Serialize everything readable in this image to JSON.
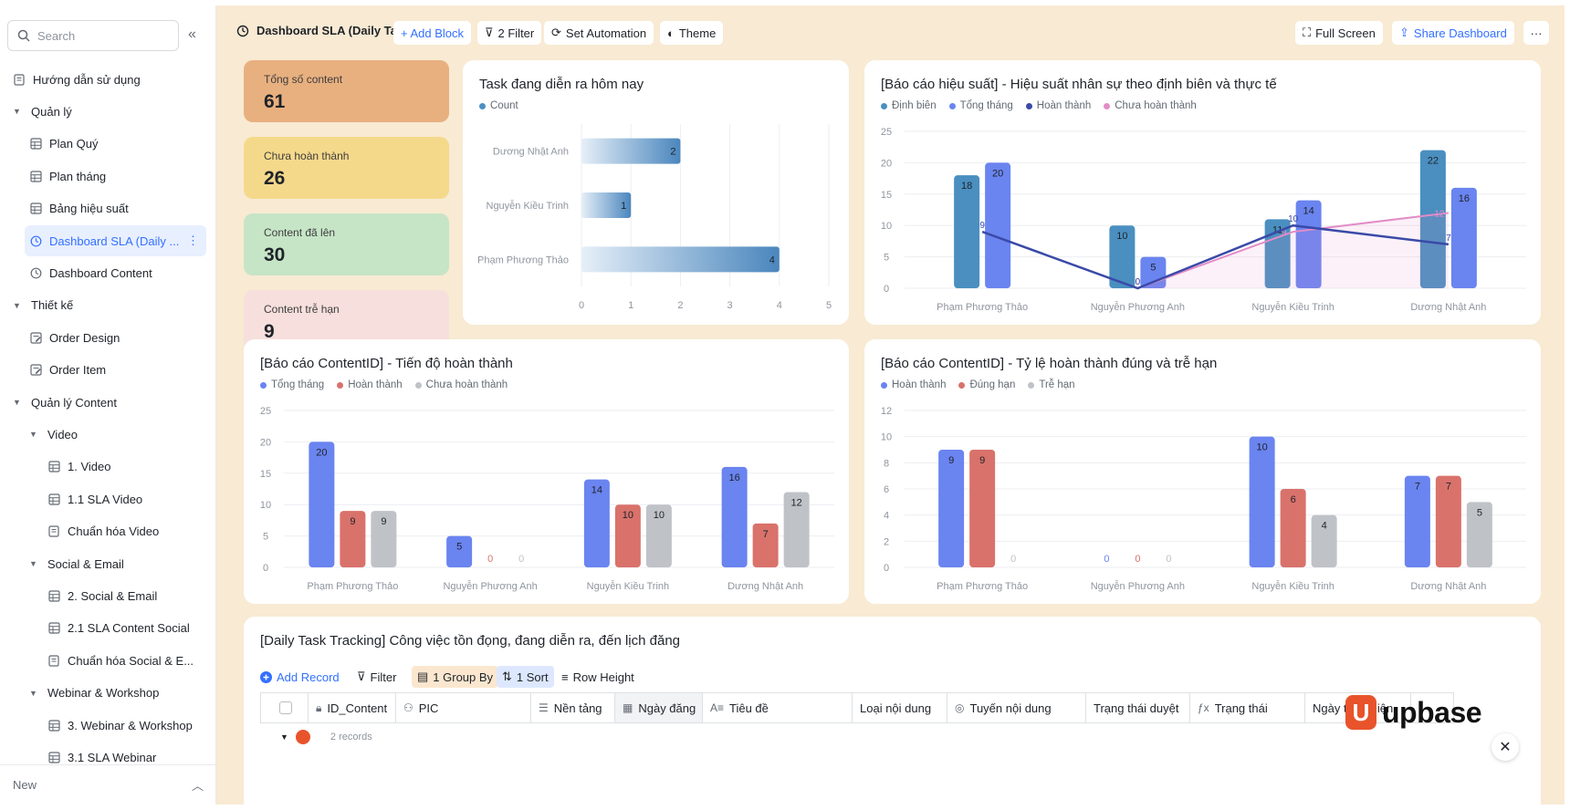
{
  "sidebar": {
    "search_placeholder": "Search",
    "footer_label": "New",
    "items": [
      {
        "label": "Hướng dẫn sử dụng",
        "level": 0,
        "icon": "doc-icon",
        "caret": false,
        "active": false
      },
      {
        "label": "Quản lý",
        "level": 0,
        "icon": "",
        "caret": true,
        "active": false
      },
      {
        "label": "Plan Quý",
        "level": 1,
        "icon": "table-icon",
        "caret": false,
        "active": false
      },
      {
        "label": "Plan tháng",
        "level": 1,
        "icon": "table-icon",
        "caret": false,
        "active": false
      },
      {
        "label": "Bảng hiệu suất",
        "level": 1,
        "icon": "table-icon",
        "caret": false,
        "active": false
      },
      {
        "label": "Dashboard SLA (Daily ...",
        "level": 1,
        "icon": "dashboard-icon",
        "caret": false,
        "active": true
      },
      {
        "label": "Dashboard Content",
        "level": 1,
        "icon": "dashboard-icon",
        "caret": false,
        "active": false
      },
      {
        "label": "Thiết kế",
        "level": 0,
        "icon": "",
        "caret": true,
        "active": false
      },
      {
        "label": "Order Design",
        "level": 1,
        "icon": "form-icon",
        "caret": false,
        "active": false
      },
      {
        "label": "Order Item",
        "level": 1,
        "icon": "form-icon",
        "caret": false,
        "active": false
      },
      {
        "label": "Quản lý Content",
        "level": 0,
        "icon": "",
        "caret": true,
        "active": false
      },
      {
        "label": "Video",
        "level": 1,
        "icon": "",
        "caret": true,
        "active": false
      },
      {
        "label": "1. Video",
        "level": 2,
        "icon": "table-icon",
        "caret": false,
        "active": false
      },
      {
        "label": "1.1 SLA Video",
        "level": 2,
        "icon": "table-icon",
        "caret": false,
        "active": false
      },
      {
        "label": "Chuẩn hóa Video",
        "level": 2,
        "icon": "doc-icon",
        "caret": false,
        "active": false
      },
      {
        "label": "Social & Email",
        "level": 1,
        "icon": "",
        "caret": true,
        "active": false
      },
      {
        "label": "2. Social & Email",
        "level": 2,
        "icon": "table-icon",
        "caret": false,
        "active": false
      },
      {
        "label": "2.1 SLA Content Social",
        "level": 2,
        "icon": "table-icon",
        "caret": false,
        "active": false
      },
      {
        "label": "Chuẩn hóa Social & E...",
        "level": 2,
        "icon": "doc-icon",
        "caret": false,
        "active": false
      },
      {
        "label": "Webinar & Workshop",
        "level": 1,
        "icon": "",
        "caret": true,
        "active": false
      },
      {
        "label": "3. Webinar & Workshop",
        "level": 2,
        "icon": "table-icon",
        "caret": false,
        "active": false
      },
      {
        "label": "3.1 SLA Webinar",
        "level": 2,
        "icon": "table-icon",
        "caret": false,
        "active": false
      }
    ]
  },
  "toolbar": {
    "title": "Dashboard SLA (Daily Task)",
    "add_block": "+ Add Block",
    "filter": "2 Filter",
    "automation": "Set Automation",
    "theme": "Theme",
    "full_screen": "Full Screen",
    "share": "Share Dashboard",
    "more": "···"
  },
  "stats": [
    {
      "label": "Tổng số content",
      "value": "61",
      "color": "#e8b07f"
    },
    {
      "label": "Chưa hoàn thành",
      "value": "26",
      "color": "#f5d98b"
    },
    {
      "label": "Content đã lên",
      "value": "30",
      "color": "#c6e5c6"
    },
    {
      "label": "Content trễ hạn",
      "value": "9",
      "color": "#f6dfdc"
    }
  ],
  "chart_data": [
    {
      "id": "bar-h",
      "type": "bar",
      "orientation": "horizontal",
      "title": "Task đang diễn ra hôm nay",
      "legend": [
        {
          "name": "Count",
          "color": "#4a90c2"
        }
      ],
      "categories": [
        "Dương Nhật Anh",
        "Nguyễn Kiều Trinh",
        "Phạm Phương Thảo"
      ],
      "values": [
        2,
        1,
        4
      ],
      "xlim": [
        0,
        5
      ],
      "ticks": [
        0,
        1,
        2,
        3,
        4,
        5
      ]
    },
    {
      "id": "hieu-suat",
      "type": "bar",
      "title": "[Báo cáo hiệu suất] - Hiệu suất nhân sự theo định biên và thực tế",
      "legend": [
        {
          "name": "Định biên",
          "color": "#4a8fc0"
        },
        {
          "name": "Tổng tháng",
          "color": "#6a84f0"
        },
        {
          "name": "Hoàn thành",
          "color": "#3a4aa8"
        },
        {
          "name": "Chưa hoàn thành",
          "color": "#e38cc7"
        }
      ],
      "categories": [
        "Phạm Phương Thảo",
        "Nguyễn Phương Anh",
        "Nguyễn Kiều Trinh",
        "Dương Nhật Anh"
      ],
      "series": [
        {
          "name": "Định biên",
          "kind": "bar",
          "color": "#4a8fc0",
          "values": [
            18,
            10,
            11,
            22
          ]
        },
        {
          "name": "Tổng tháng",
          "kind": "bar",
          "color": "#6a84f0",
          "values": [
            20,
            5,
            14,
            16
          ]
        },
        {
          "name": "Hoàn thành",
          "kind": "line",
          "color": "#3a4aa8",
          "values": [
            9,
            0,
            10,
            7
          ]
        },
        {
          "name": "Chưa hoàn thành",
          "kind": "area",
          "color": "#e38cc7",
          "values": [
            null,
            0,
            9,
            12
          ]
        }
      ],
      "ylim": [
        0,
        25
      ],
      "ticks": [
        0,
        5,
        10,
        15,
        20,
        25
      ]
    },
    {
      "id": "tien-do",
      "type": "bar",
      "title": "[Báo cáo ContentID] - Tiến độ hoàn thành",
      "legend": [
        {
          "name": "Tổng tháng",
          "color": "#6a84f0"
        },
        {
          "name": "Hoàn thành",
          "color": "#d9726b"
        },
        {
          "name": "Chưa hoàn thành",
          "color": "#bfc2c7"
        }
      ],
      "categories": [
        "Phạm Phương Thảo",
        "Nguyễn Phương Anh",
        "Nguyễn Kiều Trinh",
        "Dương Nhật Anh"
      ],
      "series": [
        {
          "name": "Tổng tháng",
          "kind": "bar",
          "color": "#6a84f0",
          "values": [
            20,
            5,
            14,
            16
          ]
        },
        {
          "name": "Hoàn thành",
          "kind": "bar",
          "color": "#d9726b",
          "values": [
            9,
            0,
            10,
            7
          ]
        },
        {
          "name": "Chưa hoàn thành",
          "kind": "bar",
          "color": "#bfc2c7",
          "values": [
            9,
            0,
            10,
            12
          ]
        }
      ],
      "ylim": [
        0,
        25
      ],
      "ticks": [
        0,
        5,
        10,
        15,
        20,
        25
      ]
    },
    {
      "id": "ty-le",
      "type": "bar",
      "title": "[Báo cáo ContentID] - Tỷ lệ hoàn thành đúng và trễ hạn",
      "legend": [
        {
          "name": "Hoàn thành",
          "color": "#6a84f0"
        },
        {
          "name": "Đúng hạn",
          "color": "#d9726b"
        },
        {
          "name": "Trễ hạn",
          "color": "#bfc2c7"
        }
      ],
      "categories": [
        "Phạm Phương Thảo",
        "Nguyễn Phương Anh",
        "Nguyễn Kiều Trinh",
        "Dương Nhật Anh"
      ],
      "series": [
        {
          "name": "Hoàn thành",
          "kind": "bar",
          "color": "#6a84f0",
          "values": [
            9,
            0,
            10,
            7
          ]
        },
        {
          "name": "Đúng hạn",
          "kind": "bar",
          "color": "#d9726b",
          "values": [
            9,
            0,
            6,
            7
          ]
        },
        {
          "name": "Trễ hạn",
          "kind": "bar",
          "color": "#bfc2c7",
          "values": [
            0,
            0,
            4,
            5
          ]
        }
      ],
      "ylim": [
        0,
        12
      ],
      "ticks": [
        0,
        2,
        4,
        6,
        8,
        10,
        12
      ]
    }
  ],
  "table": {
    "title": "[Daily Task Tracking] Công việc tồn đọng, đang diễn ra, đến lịch đăng",
    "add_record": "Add Record",
    "filter": "Filter",
    "group_by": "1 Group By",
    "sort": "1 Sort",
    "row_height": "Row Height",
    "columns": [
      "ID_Content",
      "PIC",
      "Nền tảng",
      "Ngày đăng",
      "Tiêu đề",
      "Loại nội dung",
      "Tuyến nội dung",
      "Trạng thái duyệt",
      "Trạng thái",
      "Ngày thực hiện"
    ],
    "group_label": "2 records"
  },
  "brand": {
    "logo_text": "upbase"
  }
}
